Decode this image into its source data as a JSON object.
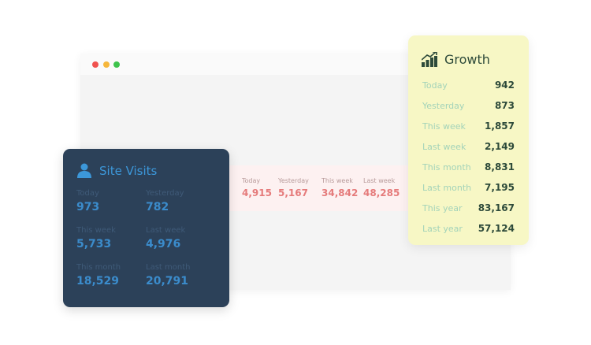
{
  "window": {
    "dots": [
      "#f0524f",
      "#f6b73c",
      "#3ec34c"
    ]
  },
  "strip": {
    "items": [
      {
        "label": "Today",
        "value": "4,915"
      },
      {
        "label": "Yesterday",
        "value": "5,167"
      },
      {
        "label": "This week",
        "value": "34,842"
      },
      {
        "label": "Last week",
        "value": "48,285"
      }
    ]
  },
  "visits": {
    "title": "Site Visits",
    "icon": "user-icon",
    "items": [
      {
        "label": "Today",
        "value": "973"
      },
      {
        "label": "Yesterday",
        "value": "782"
      },
      {
        "label": "This week",
        "value": "5,733"
      },
      {
        "label": "Last week",
        "value": "4,976"
      },
      {
        "label": "This month",
        "value": "18,529"
      },
      {
        "label": "Last month",
        "value": "20,791"
      }
    ]
  },
  "growth": {
    "title": "Growth",
    "icon": "growth-chart-icon",
    "rows": [
      {
        "label": "Today",
        "value": "942"
      },
      {
        "label": "Yesterday",
        "value": "873"
      },
      {
        "label": "This week",
        "value": "1,857"
      },
      {
        "label": "Last week",
        "value": "2,149"
      },
      {
        "label": "This month",
        "value": "8,831"
      },
      {
        "label": "Last month",
        "value": "7,195"
      },
      {
        "label": "This year",
        "value": "83,167"
      },
      {
        "label": "Last year",
        "value": "57,124"
      }
    ]
  }
}
